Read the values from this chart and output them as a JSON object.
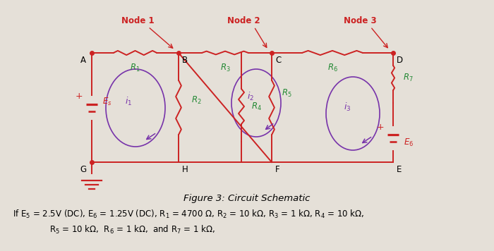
{
  "bg_color": "#e5e0d8",
  "circuit_color": "#cc2222",
  "resistor_label_color": "#228833",
  "mesh_current_color": "#7733aa",
  "title": "Figure 3: Circuit Schematic",
  "node1_label": "Node 1",
  "node2_label": "Node 2",
  "node3_label": "Node 3",
  "figsize": [
    7.0,
    3.56
  ],
  "dpi": 100
}
